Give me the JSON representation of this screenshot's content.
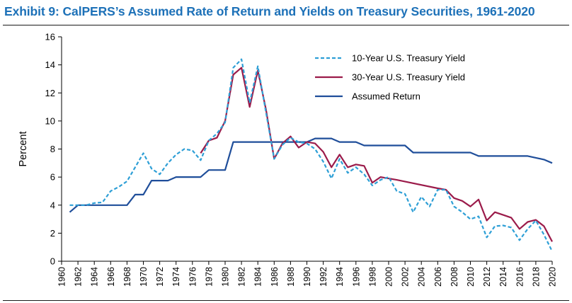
{
  "header": {
    "title": "Exhibit 9: CalPERS’s Assumed Rate of Return and Yields on Treasury Securities, 1961-2020",
    "title_color": "#1d71b8"
  },
  "chart_data": {
    "type": "line",
    "title": "Exhibit 9: CalPERS’s Assumed Rate of Return and Yields on Treasury Securities, 1961-2020",
    "xlabel": "",
    "ylabel": "Percent",
    "xlim": [
      1960,
      2020
    ],
    "ylim": [
      0,
      16
    ],
    "x_ticks": [
      1960,
      1962,
      1964,
      1966,
      1968,
      1970,
      1972,
      1974,
      1976,
      1978,
      1980,
      1982,
      1984,
      1986,
      1988,
      1990,
      1992,
      1994,
      1996,
      1998,
      2000,
      2002,
      2004,
      2006,
      2008,
      2010,
      2012,
      2014,
      2016,
      2018,
      2020
    ],
    "y_ticks": [
      0,
      2,
      4,
      6,
      8,
      10,
      12,
      14,
      16
    ],
    "grid": false,
    "legend_position": "top-right",
    "series": [
      {
        "name": "10-Year U.S. Treasury Yield",
        "color": "#2e9fd6",
        "style": "dashed",
        "x": [
          1961,
          1962,
          1963,
          1964,
          1965,
          1966,
          1967,
          1968,
          1969,
          1970,
          1971,
          1972,
          1973,
          1974,
          1975,
          1976,
          1977,
          1978,
          1979,
          1980,
          1981,
          1982,
          1983,
          1984,
          1985,
          1986,
          1987,
          1988,
          1989,
          1990,
          1991,
          1992,
          1993,
          1994,
          1995,
          1996,
          1997,
          1998,
          1999,
          2000,
          2001,
          2002,
          2003,
          2004,
          2005,
          2006,
          2007,
          2008,
          2009,
          2010,
          2011,
          2012,
          2013,
          2014,
          2015,
          2016,
          2017,
          2018,
          2019,
          2020
        ],
        "values": [
          4.0,
          4.0,
          4.0,
          4.15,
          4.2,
          5.0,
          5.3,
          5.7,
          6.7,
          7.7,
          6.6,
          6.2,
          7.0,
          7.6,
          8.0,
          7.9,
          7.2,
          8.6,
          9.1,
          9.9,
          13.8,
          14.4,
          11.3,
          13.9,
          10.6,
          7.3,
          8.3,
          8.8,
          8.5,
          8.4,
          8.0,
          7.1,
          5.9,
          7.3,
          6.3,
          6.7,
          6.2,
          5.4,
          5.8,
          6.0,
          5.0,
          4.8,
          3.5,
          4.6,
          3.9,
          5.1,
          5.1,
          3.9,
          3.5,
          3.0,
          3.2,
          1.7,
          2.5,
          2.55,
          2.4,
          1.5,
          2.3,
          2.9,
          1.9,
          0.7
        ]
      },
      {
        "name": "30-Year U.S. Treasury Yield",
        "color": "#9b1b4a",
        "style": "solid",
        "x": [
          1977,
          1978,
          1979,
          1980,
          1981,
          1982,
          1983,
          1984,
          1985,
          1986,
          1987,
          1988,
          1989,
          1990,
          1991,
          1992,
          1993,
          1994,
          1995,
          1996,
          1997,
          1998,
          1999,
          2000,
          2001,
          2006,
          2007,
          2008,
          2009,
          2010,
          2011,
          2012,
          2013,
          2014,
          2015,
          2016,
          2017,
          2018,
          2019,
          2020
        ],
        "values": [
          7.7,
          8.6,
          8.8,
          10.0,
          13.3,
          13.8,
          11.0,
          13.6,
          10.8,
          7.3,
          8.4,
          8.9,
          8.1,
          8.5,
          8.4,
          7.8,
          6.7,
          7.6,
          6.7,
          6.9,
          6.8,
          5.6,
          6.0,
          5.9,
          5.8,
          5.2,
          5.1,
          4.5,
          4.3,
          3.9,
          4.4,
          2.9,
          3.5,
          3.3,
          3.1,
          2.3,
          2.8,
          2.95,
          2.5,
          1.4
        ]
      },
      {
        "name": "Assumed Return",
        "color": "#1f4e9a",
        "style": "solid",
        "x": [
          1961,
          1962,
          1963,
          1964,
          1965,
          1966,
          1967,
          1968,
          1969,
          1970,
          1971,
          1972,
          1973,
          1974,
          1975,
          1976,
          1977,
          1978,
          1979,
          1980,
          1981,
          1982,
          1983,
          1984,
          1985,
          1986,
          1987,
          1988,
          1989,
          1990,
          1991,
          1992,
          1993,
          1994,
          1995,
          1996,
          1997,
          1998,
          1999,
          2000,
          2001,
          2002,
          2003,
          2004,
          2005,
          2006,
          2007,
          2008,
          2009,
          2010,
          2011,
          2012,
          2013,
          2014,
          2015,
          2016,
          2017,
          2018,
          2019,
          2020
        ],
        "values": [
          3.5,
          4.0,
          4.0,
          4.0,
          4.0,
          4.0,
          4.0,
          4.0,
          4.75,
          4.75,
          5.75,
          5.75,
          5.75,
          6.0,
          6.0,
          6.0,
          6.0,
          6.5,
          6.5,
          6.5,
          8.5,
          8.5,
          8.5,
          8.5,
          8.5,
          8.5,
          8.5,
          8.5,
          8.5,
          8.5,
          8.75,
          8.75,
          8.75,
          8.5,
          8.5,
          8.5,
          8.25,
          8.25,
          8.25,
          8.25,
          8.25,
          8.25,
          7.75,
          7.75,
          7.75,
          7.75,
          7.75,
          7.75,
          7.75,
          7.75,
          7.5,
          7.5,
          7.5,
          7.5,
          7.5,
          7.5,
          7.5,
          7.375,
          7.25,
          7.0
        ]
      }
    ]
  }
}
